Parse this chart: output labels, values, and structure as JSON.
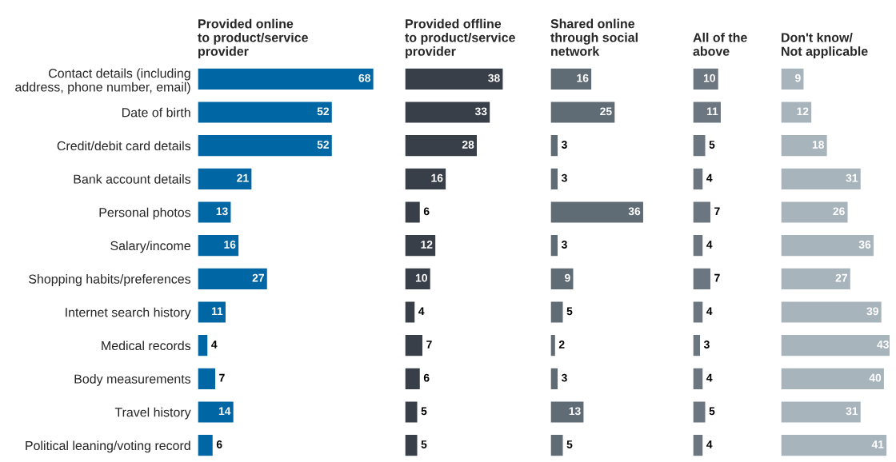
{
  "chart_data": [
    {
      "type": "bar",
      "orientation": "horizontal",
      "title": "Provided online\nto product/service\nprovider",
      "categories": [
        "Contact details (including\naddress, phone number, email)",
        "Date of birth",
        "Credit/debit card details",
        "Bank account details",
        "Personal photos",
        "Salary/income",
        "Shopping habits/preferences",
        "Internet search history",
        "Medical records",
        "Body measurements",
        "Travel history",
        "Political leaning/voting record"
      ],
      "values": [
        68,
        52,
        52,
        21,
        13,
        16,
        27,
        11,
        4,
        7,
        14,
        6
      ],
      "color": "#0066a4",
      "data_labels": true,
      "tick_labels": "y"
    },
    {
      "type": "bar",
      "orientation": "horizontal",
      "title": "Provided offline\nto product/service\nprovider",
      "values": [
        38,
        33,
        28,
        16,
        6,
        12,
        10,
        4,
        7,
        6,
        5,
        5
      ],
      "color": "#383f48",
      "data_labels": true,
      "tick_labels": false
    },
    {
      "type": "bar",
      "orientation": "horizontal",
      "title": "Shared online\nthrough social\nnetwork",
      "values": [
        16,
        25,
        3,
        3,
        36,
        3,
        9,
        5,
        2,
        3,
        13,
        5
      ],
      "color": "#5f6b75",
      "data_labels": true,
      "tick_labels": false
    },
    {
      "type": "bar",
      "orientation": "horizontal",
      "title": "All of the\nabove",
      "values": [
        10,
        11,
        5,
        4,
        7,
        4,
        7,
        4,
        3,
        4,
        5,
        4
      ],
      "color": "#6b7680",
      "data_labels": true,
      "tick_labels": false
    },
    {
      "type": "bar",
      "orientation": "horizontal",
      "title": "Don't know/\nNot applicable",
      "values": [
        9,
        12,
        18,
        31,
        26,
        36,
        27,
        39,
        43,
        40,
        31,
        41
      ],
      "color": "#a8b4bc",
      "data_labels": true,
      "tick_labels": false
    }
  ]
}
